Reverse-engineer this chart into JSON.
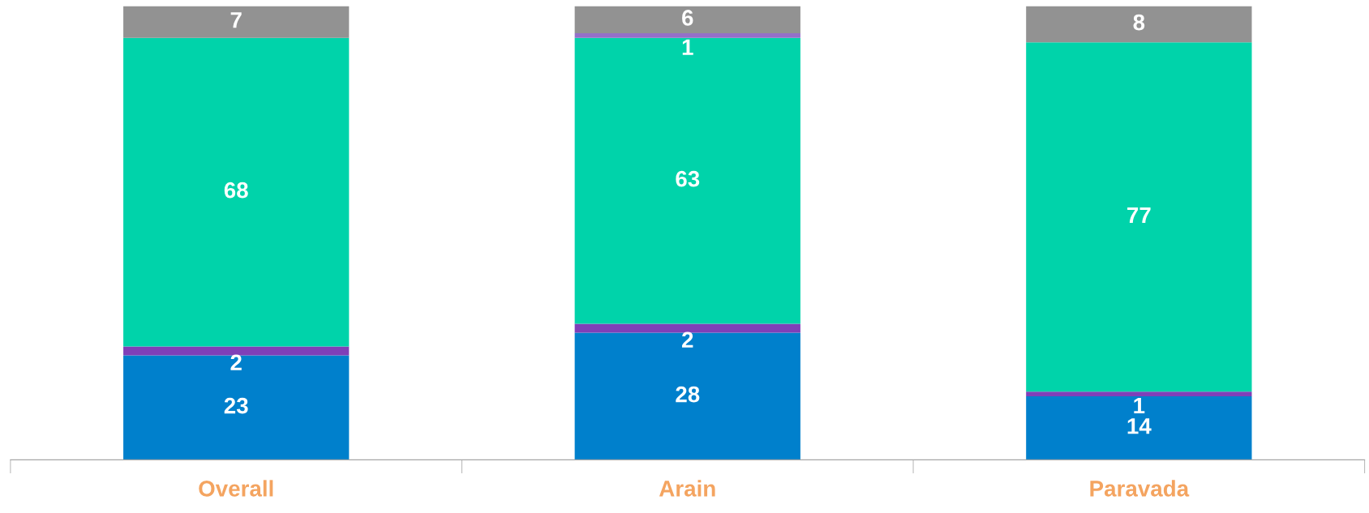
{
  "chart_data": {
    "type": "bar",
    "stacked": true,
    "data_labels": true,
    "grid": false,
    "legend": false,
    "categories": [
      "Overall",
      "Arain",
      "Paravada"
    ],
    "series": [
      {
        "color": "#0080cc",
        "values": [
          23,
          28,
          14
        ]
      },
      {
        "color": "#7f3fb8",
        "values": [
          2,
          2,
          1
        ]
      },
      {
        "color": "#00d3aa",
        "values": [
          68,
          63,
          77
        ]
      },
      {
        "color": "#9470c8",
        "values": [
          null,
          1,
          null
        ]
      },
      {
        "color": "#929292",
        "values": [
          7,
          6,
          8
        ]
      }
    ]
  }
}
